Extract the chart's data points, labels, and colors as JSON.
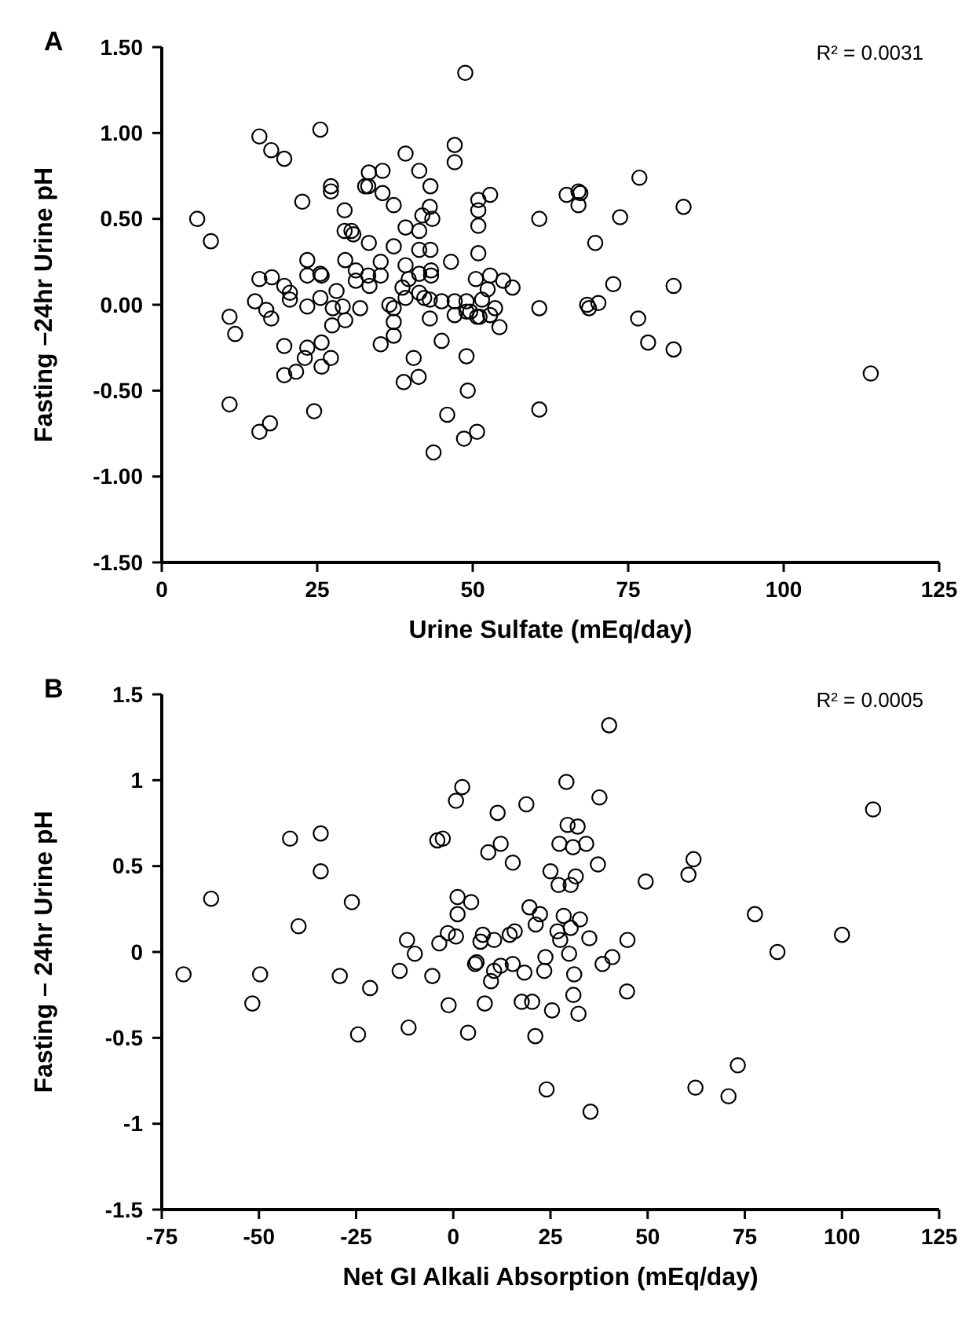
{
  "chart_data": [
    {
      "type": "scatter",
      "title": "A",
      "xlabel": "Urine Sulfate (mEq/day)",
      "ylabel": "Fasting –24hr Urine pH",
      "annotations": [
        "R² = 0.0031"
      ],
      "marker": "circle",
      "grid": false,
      "xlim": [
        0,
        125
      ],
      "xticks": [
        0,
        25,
        50,
        75,
        100,
        125
      ],
      "ylim": [
        -1.5,
        1.5
      ],
      "yticks": [
        {
          "value": 1.5,
          "label": "1.50"
        },
        {
          "value": 1,
          "label": "1.00"
        },
        {
          "value": 0.5,
          "label": "0.50"
        },
        {
          "value": 0,
          "label": "0.00"
        },
        {
          "value": -0.5,
          "label": "-0.50"
        },
        {
          "value": -1,
          "label": "-1.00"
        },
        {
          "value": -1.5,
          "label": "-1.50"
        }
      ],
      "series": [
        {
          "color": "#000000",
          "x": [
            5.7,
            7.9,
            15.7,
            17.6,
            19.7,
            25.5,
            22.6,
            27.2,
            27.2,
            29.4,
            29.4,
            30.5,
            30.8,
            33.3,
            33.2,
            32.7,
            35.5,
            35.5,
            37.3,
            33.3,
            39.2,
            41.4,
            43.2,
            43.1,
            41.9,
            43.5,
            47.1,
            47.1,
            39.2,
            41.4,
            37.3,
            41.4,
            43.2,
            39.2,
            41.4,
            43.3,
            43.3,
            46.5,
            23.4,
            23.4,
            25.5,
            25.7,
            15.7,
            17.7,
            19.7,
            20.6,
            20.6,
            15.0,
            16.8,
            17.6,
            10.9,
            11.8,
            23.4,
            25.5,
            28.1,
            27.5,
            29.1,
            29.5,
            27.4,
            29.5,
            31.2,
            31.2,
            33.2,
            33.4,
            35.2,
            35.2,
            31.9,
            36.6,
            37.3,
            38.7,
            39.2,
            39.7,
            41.4,
            42.2,
            43.1,
            45.0,
            47.1,
            49.0,
            47.1,
            49.0,
            50.7,
            37.3,
            37.3,
            35.2,
            43.1,
            45.0,
            19.7,
            23.4,
            23.0,
            25.7,
            27.2,
            25.7,
            21.6,
            19.7,
            40.5,
            38.9,
            41.3,
            49.0,
            49.2,
            10.9,
            24.5,
            15.7,
            17.4,
            45.9,
            48.6,
            50.7,
            43.7,
            48.8,
            50.9,
            52.8,
            50.9,
            50.9,
            50.9,
            50.5,
            52.8,
            54.9,
            56.4,
            52.4,
            51.5,
            53.6,
            49.6,
            51.1,
            52.8,
            54.3,
            60.7,
            60.7,
            60.7,
            65.1,
            67.0,
            67.3,
            67.0,
            69.7,
            73.7,
            76.8,
            72.6,
            68.4,
            68.7,
            70.2,
            76.6,
            78.2,
            83.9,
            82.3,
            82.3,
            114
          ],
          "values": [
            0.5,
            0.37,
            0.98,
            0.9,
            0.85,
            1.02,
            0.6,
            0.69,
            0.66,
            0.55,
            0.43,
            0.43,
            0.41,
            0.77,
            0.69,
            0.69,
            0.78,
            0.65,
            0.58,
            0.36,
            0.88,
            0.78,
            0.69,
            0.57,
            0.52,
            0.5,
            0.93,
            0.83,
            0.45,
            0.43,
            0.34,
            0.32,
            0.32,
            0.23,
            0.18,
            0.2,
            0.17,
            0.25,
            0.26,
            0.17,
            0.18,
            0.17,
            0.15,
            0.16,
            0.11,
            0.07,
            0.03,
            0.02,
            -0.03,
            -0.08,
            -0.07,
            -0.17,
            -0.01,
            0.04,
            0.08,
            -0.02,
            -0.01,
            -0.09,
            -0.12,
            0.26,
            0.2,
            0.14,
            0.17,
            0.11,
            0.25,
            0.17,
            -0.02,
            0.0,
            -0.02,
            0.1,
            0.04,
            0.15,
            0.07,
            0.04,
            0.03,
            0.02,
            0.02,
            0.02,
            -0.06,
            -0.04,
            -0.07,
            -0.1,
            -0.18,
            -0.23,
            -0.08,
            -0.21,
            -0.24,
            -0.25,
            -0.31,
            -0.22,
            -0.31,
            -0.36,
            -0.39,
            -0.41,
            -0.31,
            -0.45,
            -0.42,
            -0.3,
            -0.5,
            -0.58,
            -0.62,
            -0.74,
            -0.69,
            -0.64,
            -0.78,
            -0.74,
            -0.86,
            1.35,
            0.61,
            0.64,
            0.55,
            0.46,
            0.3,
            0.15,
            0.17,
            0.14,
            0.1,
            0.09,
            0.03,
            -0.02,
            -0.04,
            -0.07,
            -0.06,
            -0.13,
            0.5,
            -0.02,
            -0.61,
            0.64,
            0.66,
            0.65,
            0.58,
            0.36,
            0.51,
            0.74,
            0.12,
            0.0,
            -0.02,
            0.01,
            -0.08,
            -0.22,
            0.57,
            0.11,
            -0.26,
            -0.4
          ]
        }
      ]
    },
    {
      "type": "scatter",
      "title": "B",
      "xlabel": "Net GI Alkali Absorption (mEq/day)",
      "ylabel": "Fasting – 24hr Urine pH",
      "annotations": [
        "R² = 0.0005"
      ],
      "marker": "circle",
      "grid": false,
      "xlim": [
        -75,
        125
      ],
      "xticks": [
        -75,
        -50,
        -25,
        0,
        25,
        50,
        75,
        100,
        125
      ],
      "ylim": [
        -1.5,
        1.5
      ],
      "yticks": [
        1.5,
        1,
        0.5,
        0,
        -0.5,
        -1,
        -1.5
      ],
      "series": [
        {
          "color": "#000000",
          "x": [
            2.3,
            0.7,
            -42.0,
            -34.1,
            -4.1,
            -2.7,
            -34.1,
            -62.3,
            -26.1,
            -39.8,
            1.1,
            4.6,
            1.1,
            -11.9,
            -9.9,
            -13.8,
            -3.6,
            -1.4,
            0.7,
            -5.4,
            5.6,
            6.0,
            -69.4,
            -49.7,
            -51.7,
            -29.2,
            -21.4,
            -24.5,
            -11.5,
            -1.2,
            3.8,
            40.1,
            29.1,
            37.6,
            11.4,
            18.8,
            29.4,
            32.0,
            12.2,
            9.0,
            15.3,
            27.3,
            30.8,
            34.2,
            37.2,
            25.0,
            27.1,
            30.2,
            31.5,
            49.5,
            60.5,
            61.8,
            77.6,
            83.4,
            7.6,
            7.0,
            10.5,
            14.5,
            15.8,
            19.6,
            22.3,
            21.2,
            26.8,
            28.4,
            30.2,
            32.6,
            27.5,
            35.0,
            12.2,
            10.5,
            9.7,
            15.3,
            18.3,
            23.7,
            23.4,
            29.8,
            31.1,
            38.4,
            40.9,
            44.8,
            8.1,
            17.6,
            20.3,
            25.4,
            30.9,
            32.2,
            44.7,
            21.1,
            24.0,
            35.3,
            62.3,
            70.8,
            73.2,
            100,
            108
          ],
          "values": [
            0.96,
            0.88,
            0.66,
            0.69,
            0.65,
            0.66,
            0.47,
            0.31,
            0.29,
            0.15,
            0.32,
            0.29,
            0.22,
            0.07,
            -0.01,
            -0.11,
            0.05,
            0.11,
            0.09,
            -0.14,
            -0.07,
            -0.06,
            -0.13,
            -0.13,
            -0.3,
            -0.14,
            -0.21,
            -0.48,
            -0.44,
            -0.31,
            -0.47,
            1.32,
            0.99,
            0.9,
            0.81,
            0.86,
            0.74,
            0.73,
            0.63,
            0.58,
            0.52,
            0.63,
            0.61,
            0.63,
            0.51,
            0.47,
            0.39,
            0.39,
            0.44,
            0.41,
            0.45,
            0.54,
            0.22,
            0.0,
            0.1,
            0.06,
            0.07,
            0.1,
            0.12,
            0.26,
            0.22,
            0.16,
            0.12,
            0.21,
            0.14,
            0.19,
            0.07,
            0.08,
            -0.08,
            -0.11,
            -0.17,
            -0.07,
            -0.12,
            -0.03,
            -0.11,
            -0.01,
            -0.13,
            -0.07,
            -0.03,
            0.07,
            -0.3,
            -0.29,
            -0.29,
            -0.34,
            -0.25,
            -0.36,
            -0.23,
            -0.49,
            -0.8,
            -0.93,
            -0.79,
            -0.84,
            -0.66,
            0.1,
            0.83
          ]
        }
      ]
    }
  ]
}
